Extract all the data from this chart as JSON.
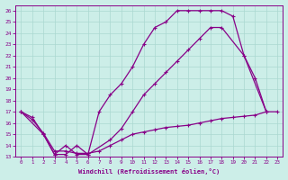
{
  "xlabel": "Windchill (Refroidissement éolien,°C)",
  "bg_color": "#cceee8",
  "line_color": "#880088",
  "xlim": [
    -0.5,
    23.5
  ],
  "ylim": [
    13,
    26.5
  ],
  "xticks": [
    0,
    1,
    2,
    3,
    4,
    5,
    6,
    7,
    8,
    9,
    10,
    11,
    12,
    13,
    14,
    15,
    16,
    17,
    18,
    19,
    20,
    21,
    22,
    23
  ],
  "yticks": [
    13,
    14,
    15,
    16,
    17,
    18,
    19,
    20,
    21,
    22,
    23,
    24,
    25,
    26
  ],
  "line1_x": [
    0,
    1,
    2,
    3,
    4,
    5,
    6,
    7,
    8,
    9,
    10,
    11,
    12,
    13,
    14,
    15,
    16,
    17,
    18,
    19,
    20,
    21,
    22
  ],
  "line1_y": [
    17,
    16.5,
    15,
    13.2,
    13.2,
    14,
    13.2,
    17,
    18.5,
    19.5,
    21,
    23,
    24.5,
    25,
    26,
    26,
    26,
    26,
    26,
    25.5,
    22,
    20,
    17
  ],
  "line2_x": [
    0,
    2,
    3,
    4,
    5,
    6,
    8,
    9,
    10,
    11,
    12,
    13,
    14,
    15,
    16,
    17,
    18,
    20,
    22
  ],
  "line2_y": [
    17,
    15,
    13.2,
    14,
    13.2,
    13.2,
    14.5,
    15.5,
    17,
    18.5,
    19.5,
    20.5,
    21.5,
    22.5,
    23.5,
    24.5,
    24.5,
    22,
    17
  ],
  "line3_x": [
    0,
    1,
    2,
    3,
    4,
    5,
    6,
    7,
    8,
    9,
    10,
    11,
    12,
    13,
    14,
    15,
    16,
    17,
    18,
    19,
    20,
    21,
    22,
    23
  ],
  "line3_y": [
    17,
    16.3,
    15.1,
    13.5,
    13.5,
    13.3,
    13.3,
    13.5,
    14,
    14.5,
    15,
    15.2,
    15.4,
    15.6,
    15.7,
    15.8,
    16,
    16.2,
    16.4,
    16.5,
    16.6,
    16.7,
    17,
    17
  ]
}
